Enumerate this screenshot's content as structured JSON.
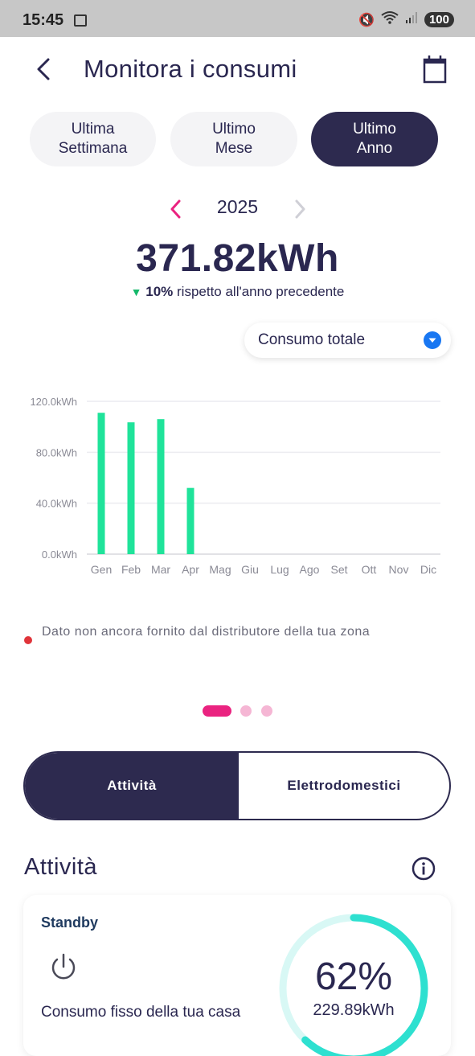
{
  "status_bar": {
    "time": "15:45",
    "battery": "100"
  },
  "header": {
    "title": "Monitora i consumi"
  },
  "period_tabs": [
    {
      "label": "Ultima\nSettimana",
      "active": false
    },
    {
      "label": "Ultimo\nMese",
      "active": false
    },
    {
      "label": "Ultimo\nAnno",
      "active": true
    }
  ],
  "year_nav": {
    "year": "2025"
  },
  "summary": {
    "total": "371.82kWh",
    "change_pct": "10%",
    "change_text": "rispetto all'anno precedente",
    "direction": "down"
  },
  "dropdown": {
    "selected": "Consumo totale"
  },
  "chart_data": {
    "type": "bar",
    "categories": [
      "Gen",
      "Feb",
      "Mar",
      "Apr",
      "Mag",
      "Giu",
      "Lug",
      "Ago",
      "Set",
      "Ott",
      "Nov",
      "Dic"
    ],
    "values": [
      111,
      103.5,
      106,
      52,
      0,
      0,
      0,
      0,
      0,
      0,
      0,
      0
    ],
    "ylim": [
      0,
      120
    ],
    "yticks": [
      "0.0kWh",
      "40.0kWh",
      "80.0kWh",
      "120.0kWh"
    ],
    "ytick_values": [
      0,
      40,
      80,
      120
    ],
    "xlabel": "",
    "ylabel": "",
    "grid": true,
    "bar_color": "#1fe39a"
  },
  "note": {
    "text": "Dato non ancora fornito dal distributore della tua zona"
  },
  "view_toggle": {
    "left": "Attività",
    "right": "Elettrodomestici",
    "selected": "left"
  },
  "activities": {
    "title": "Attività",
    "cards": [
      {
        "title": "Standby",
        "description": "Consumo fisso della tua casa",
        "percent": "62%",
        "value": "229.89kWh",
        "fraction": 0.62
      }
    ]
  },
  "colors": {
    "primary": "#2d2a4f",
    "accent": "#ea2380",
    "bar": "#1fe39a",
    "gauge": "#2ee0d0",
    "gauge_track": "#d8f8f5"
  },
  "icons": {
    "back": "chevron-left-icon",
    "calendar": "calendar-icon",
    "info": "info-icon",
    "power": "power-icon",
    "dropdown": "chevron-down-icon"
  }
}
